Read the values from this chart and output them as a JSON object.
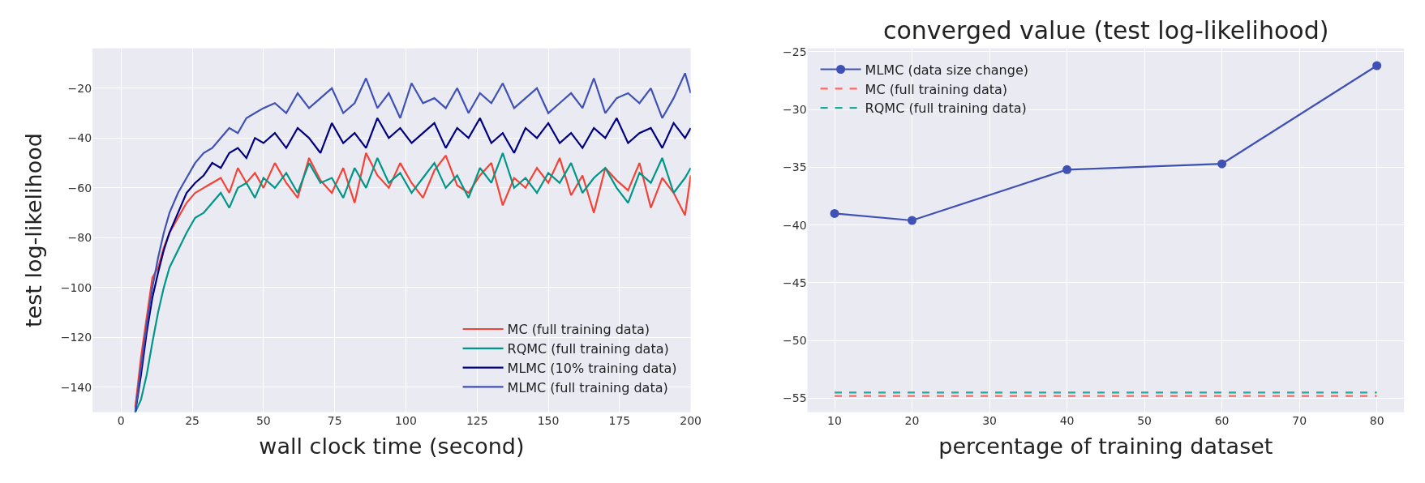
{
  "chart_data": [
    {
      "type": "line",
      "xlabel": "wall clock time (second)",
      "ylabel": "test log-likelihood",
      "x": [
        5,
        7,
        9,
        11,
        13,
        15,
        17,
        20,
        23,
        26,
        29,
        32,
        35,
        38,
        41,
        44,
        47,
        50,
        54,
        58,
        62,
        66,
        70,
        74,
        78,
        82,
        86,
        90,
        94,
        98,
        102,
        106,
        110,
        114,
        118,
        122,
        126,
        130,
        134,
        138,
        142,
        146,
        150,
        154,
        158,
        162,
        166,
        170,
        174,
        178,
        182,
        186,
        190,
        194,
        198,
        200
      ],
      "series": [
        {
          "name": "MC (full training data)",
          "color": "#f44336",
          "values": [
            -148,
            -128,
            -112,
            -96,
            -92,
            -84,
            -78,
            -72,
            -66,
            -62,
            -60,
            -58,
            -56,
            -62,
            -52,
            -58,
            -54,
            -60,
            -50,
            -58,
            -64,
            -48,
            -57,
            -62,
            -52,
            -66,
            -46,
            -55,
            -60,
            -50,
            -58,
            -64,
            -53,
            -47,
            -59,
            -62,
            -55,
            -50,
            -67,
            -56,
            -60,
            -52,
            -58,
            -48,
            -63,
            -55,
            -70,
            -52,
            -57,
            -61,
            -50,
            -68,
            -56,
            -62,
            -71,
            -55
          ]
        },
        {
          "name": "RQMC (full training data)",
          "color": "#009688",
          "values": [
            -150,
            -145,
            -135,
            -122,
            -110,
            -100,
            -92,
            -85,
            -78,
            -72,
            -70,
            -66,
            -62,
            -68,
            -60,
            -58,
            -64,
            -56,
            -60,
            -54,
            -62,
            -50,
            -58,
            -56,
            -64,
            -52,
            -60,
            -48,
            -58,
            -54,
            -62,
            -56,
            -50,
            -60,
            -55,
            -64,
            -52,
            -58,
            -46,
            -60,
            -56,
            -62,
            -54,
            -58,
            -50,
            -62,
            -56,
            -52,
            -60,
            -66,
            -54,
            -58,
            -48,
            -62,
            -56,
            -52
          ]
        },
        {
          "name": "MLMC (10% training data)",
          "color": "#000080",
          "values": [
            -150,
            -135,
            -118,
            -104,
            -94,
            -85,
            -78,
            -70,
            -62,
            -58,
            -55,
            -50,
            -52,
            -46,
            -44,
            -48,
            -40,
            -42,
            -38,
            -44,
            -36,
            -40,
            -46,
            -34,
            -42,
            -38,
            -44,
            -32,
            -40,
            -36,
            -42,
            -38,
            -34,
            -44,
            -36,
            -40,
            -32,
            -42,
            -38,
            -46,
            -36,
            -40,
            -34,
            -42,
            -38,
            -44,
            -36,
            -40,
            -32,
            -42,
            -38,
            -36,
            -44,
            -34,
            -40,
            -36
          ]
        },
        {
          "name": "MLMC (full training data)",
          "color": "#3f51b5",
          "values": [
            -150,
            -132,
            -115,
            -100,
            -88,
            -78,
            -70,
            -62,
            -56,
            -50,
            -46,
            -44,
            -40,
            -36,
            -38,
            -32,
            -30,
            -28,
            -26,
            -30,
            -22,
            -28,
            -24,
            -20,
            -30,
            -26,
            -16,
            -28,
            -22,
            -32,
            -18,
            -26,
            -24,
            -28,
            -20,
            -30,
            -22,
            -26,
            -18,
            -28,
            -24,
            -20,
            -30,
            -26,
            -22,
            -28,
            -16,
            -30,
            -24,
            -22,
            -26,
            -20,
            -32,
            -24,
            -14,
            -22
          ]
        }
      ],
      "xlim": [
        -10,
        200
      ],
      "xticks": [
        0,
        25,
        50,
        75,
        100,
        125,
        150,
        175,
        200
      ],
      "ylim": [
        -150,
        -4
      ],
      "yticks": [
        -140,
        -120,
        -100,
        -80,
        -60,
        -40,
        -20
      ],
      "grid": true,
      "legend": "bottom right",
      "marker": "none",
      "line_style": "solid"
    },
    {
      "type": "line",
      "title": "converged value (test log-likelihood)",
      "xlabel": "percentage of training dataset",
      "series": [
        {
          "name": "MLMC (data size change)",
          "color": "#3f51b5",
          "x": [
            10,
            20,
            40,
            60,
            80
          ],
          "values": [
            -39.0,
            -39.6,
            -35.2,
            -34.7,
            -26.2
          ],
          "marker": "circle",
          "line_style": "solid"
        },
        {
          "name": "MC (full training data)",
          "color": "#f96a60",
          "x": [
            10,
            80
          ],
          "values": [
            -54.8,
            -54.8
          ],
          "marker": "none",
          "line_style": "dashed"
        },
        {
          "name": "RQMC (full training data)",
          "color": "#26a69a",
          "x": [
            10,
            80
          ],
          "values": [
            -54.5,
            -54.5
          ],
          "marker": "none",
          "line_style": "dashed"
        }
      ],
      "xlim": [
        6.5,
        83.5
      ],
      "xticks": [
        10,
        20,
        30,
        40,
        50,
        60,
        70,
        80
      ],
      "ylim": [
        -56.2,
        -24.7
      ],
      "yticks": [
        -55,
        -50,
        -45,
        -40,
        -35,
        -30,
        -25
      ],
      "grid": true,
      "legend": "top left"
    }
  ]
}
